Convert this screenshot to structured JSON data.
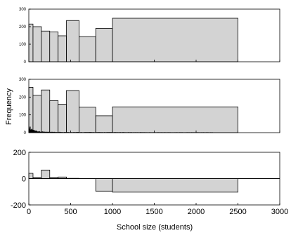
{
  "chart_data": [
    {
      "type": "bar",
      "panel": "top",
      "bar_color": "#d3d3d3",
      "edge_color": "#000000",
      "xlim": [
        0,
        3000
      ],
      "ylim": [
        0,
        300
      ],
      "yticks": [
        0,
        100,
        200,
        300
      ],
      "bins": [
        {
          "x0": 0,
          "x1": 50,
          "value": 215
        },
        {
          "x0": 50,
          "x1": 150,
          "value": 200
        },
        {
          "x0": 150,
          "x1": 250,
          "value": 175
        },
        {
          "x0": 250,
          "x1": 350,
          "value": 170
        },
        {
          "x0": 350,
          "x1": 450,
          "value": 148
        },
        {
          "x0": 450,
          "x1": 600,
          "value": 235
        },
        {
          "x0": 600,
          "x1": 800,
          "value": 143
        },
        {
          "x0": 800,
          "x1": 1000,
          "value": 190
        },
        {
          "x0": 1000,
          "x1": 2500,
          "value": 248
        }
      ]
    },
    {
      "type": "bar",
      "panel": "middle",
      "ylabel": "Frequency",
      "bar_color": "#d3d3d3",
      "edge_color": "#000000",
      "xlim": [
        0,
        3000
      ],
      "ylim": [
        0,
        300
      ],
      "yticks": [
        0,
        100,
        200,
        300
      ],
      "bins": [
        {
          "x0": 0,
          "x1": 50,
          "value": 255
        },
        {
          "x0": 50,
          "x1": 150,
          "value": 210
        },
        {
          "x0": 150,
          "x1": 250,
          "value": 240
        },
        {
          "x0": 250,
          "x1": 350,
          "value": 180
        },
        {
          "x0": 350,
          "x1": 450,
          "value": 160
        },
        {
          "x0": 450,
          "x1": 600,
          "value": 237
        },
        {
          "x0": 600,
          "x1": 800,
          "value": 143
        },
        {
          "x0": 800,
          "x1": 1000,
          "value": 95
        },
        {
          "x0": 1000,
          "x1": 2500,
          "value": 145
        }
      ],
      "fine_histogram": {
        "x_start": 0,
        "x_end": 2200,
        "bin_width": 10,
        "peak_value": 40
      }
    },
    {
      "type": "bar",
      "panel": "bottom",
      "xlabel": "School size (students)",
      "bar_color": "#d3d3d3",
      "edge_color": "#000000",
      "xlim": [
        0,
        3000
      ],
      "ylim": [
        -200,
        200
      ],
      "yticks": [
        -200,
        0,
        200
      ],
      "xticks": [
        0,
        500,
        1000,
        1500,
        2000,
        2500,
        3000
      ],
      "bins": [
        {
          "x0": 0,
          "x1": 50,
          "value": 40
        },
        {
          "x0": 50,
          "x1": 150,
          "value": 10
        },
        {
          "x0": 150,
          "x1": 250,
          "value": 65
        },
        {
          "x0": 250,
          "x1": 350,
          "value": 10
        },
        {
          "x0": 350,
          "x1": 450,
          "value": 12
        },
        {
          "x0": 450,
          "x1": 600,
          "value": 2
        },
        {
          "x0": 600,
          "x1": 800,
          "value": 0
        },
        {
          "x0": 800,
          "x1": 1000,
          "value": -95
        },
        {
          "x0": 1000,
          "x1": 2500,
          "value": -103
        }
      ]
    }
  ]
}
